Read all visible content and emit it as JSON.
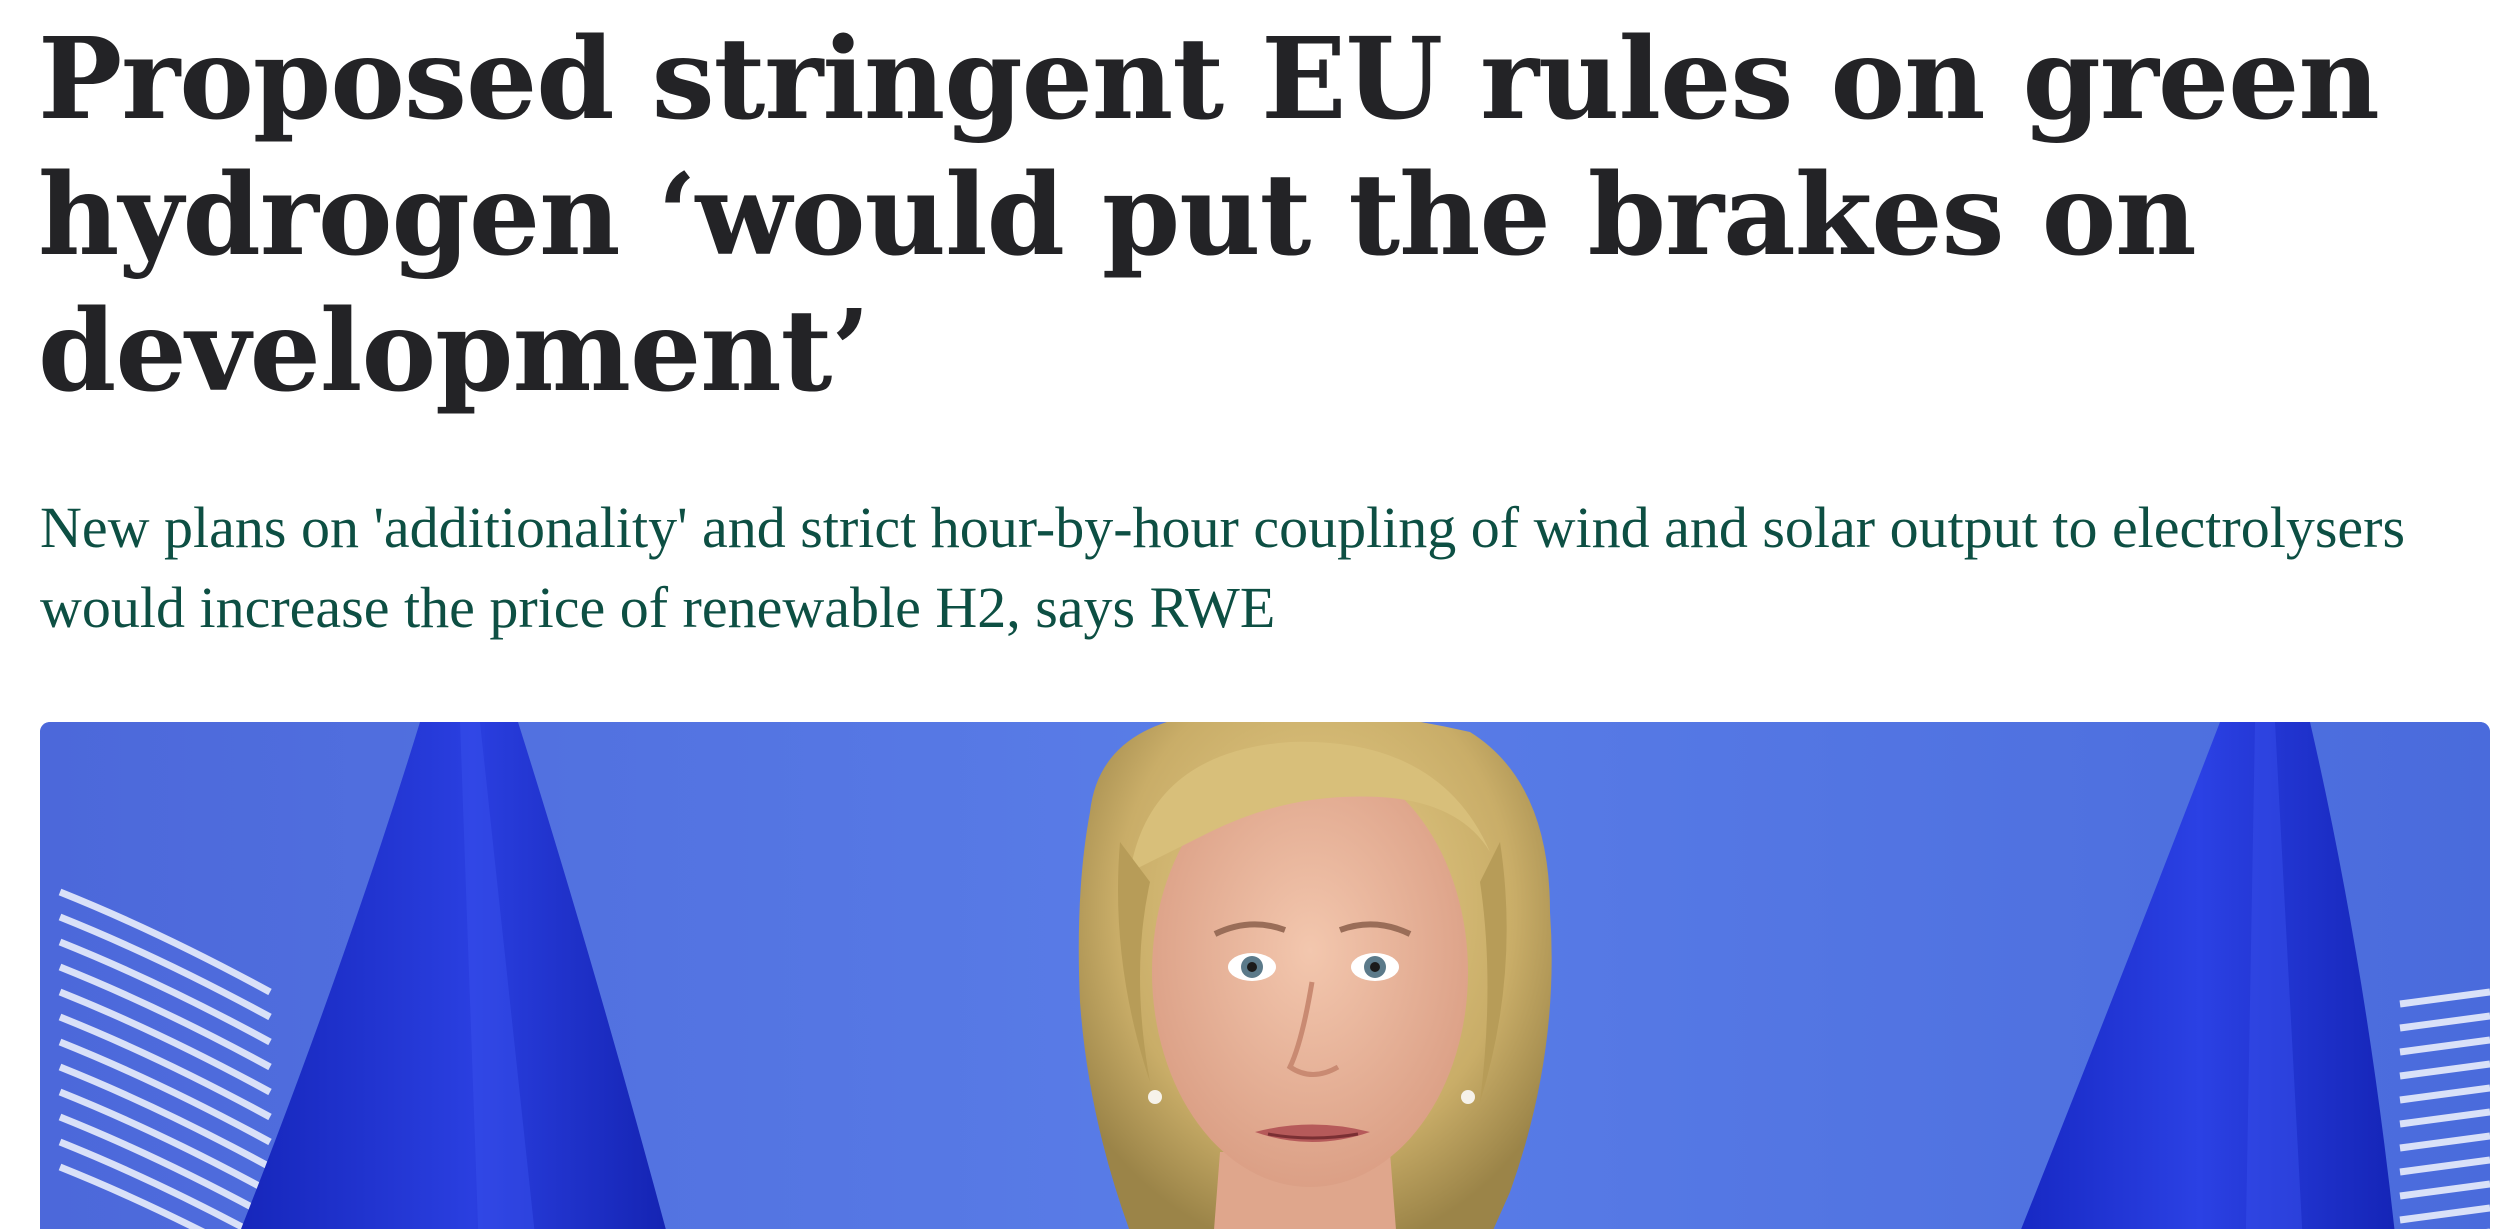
{
  "article": {
    "headline": "Proposed stringent EU rules on green hydrogen ‘would put the brakes on development’",
    "standfirst": "New plans on 'additionality' and strict hour-by-hour coupling of wind and solar output to electrolysers would increase the price of renewable H2, says RWE"
  },
  "colors": {
    "headline": "#232326",
    "standfirst": "#0d4f43",
    "photo_background": "#4a6fe0",
    "flag": "#1a2ccf"
  },
  "icons": {
    "photo": "news-photo"
  }
}
